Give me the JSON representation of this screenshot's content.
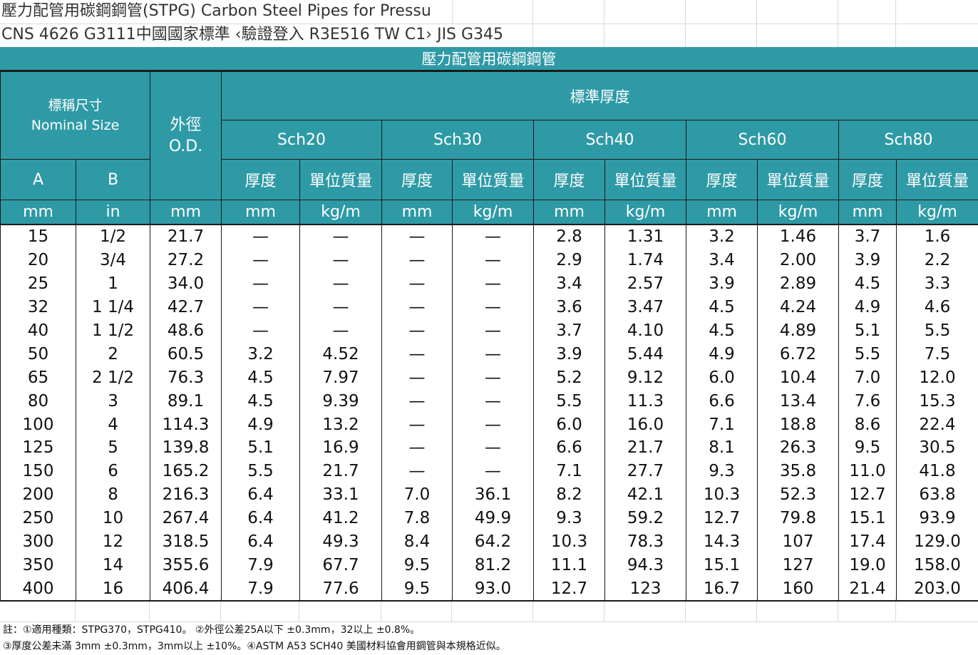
{
  "sheet": {
    "title_line1": "壓力配管用碳鋼鋼管(STPG) Carbon Steel Pipes for Pressu",
    "title_line2": "CNS 4626 G3111中國國家標準 ‹驗證登入 R3E516 TW C1› JIS G345",
    "banner": "壓力配管用碳鋼鋼管",
    "colors": {
      "header_bg": "#2e9aa6",
      "header_text": "#ffffff"
    }
  },
  "header": {
    "nominal_zh": "標稱尺寸",
    "nominal_en": "Nominal Size",
    "od_zh": "外徑",
    "od_en": "O.D.",
    "standard_thickness": "標準厚度",
    "schedules": [
      "Sch20",
      "Sch30",
      "Sch40",
      "Sch60",
      "Sch80"
    ],
    "col_a": "A",
    "col_b": "B",
    "thickness": "厚度",
    "unit_mass": "單位質量",
    "unit_mm": "mm",
    "unit_in": "in",
    "unit_kgm": "kg/m"
  },
  "rows": [
    [
      "15",
      "1/2",
      "21.7",
      "—",
      "—",
      "—",
      "—",
      "2.8",
      "1.31",
      "3.2",
      "1.46",
      "3.7",
      "1.6"
    ],
    [
      "20",
      "3/4",
      "27.2",
      "—",
      "—",
      "—",
      "—",
      "2.9",
      "1.74",
      "3.4",
      "2.00",
      "3.9",
      "2.2"
    ],
    [
      "25",
      "1",
      "34.0",
      "—",
      "—",
      "—",
      "—",
      "3.4",
      "2.57",
      "3.9",
      "2.89",
      "4.5",
      "3.3"
    ],
    [
      "32",
      "1 1/4",
      "42.7",
      "—",
      "—",
      "—",
      "—",
      "3.6",
      "3.47",
      "4.5",
      "4.24",
      "4.9",
      "4.6"
    ],
    [
      "40",
      "1 1/2",
      "48.6",
      "—",
      "—",
      "—",
      "—",
      "3.7",
      "4.10",
      "4.5",
      "4.89",
      "5.1",
      "5.5"
    ],
    [
      "50",
      "2",
      "60.5",
      "3.2",
      "4.52",
      "—",
      "—",
      "3.9",
      "5.44",
      "4.9",
      "6.72",
      "5.5",
      "7.5"
    ],
    [
      "65",
      "2 1/2",
      "76.3",
      "4.5",
      "7.97",
      "—",
      "—",
      "5.2",
      "9.12",
      "6.0",
      "10.4",
      "7.0",
      "12.0"
    ],
    [
      "80",
      "3",
      "89.1",
      "4.5",
      "9.39",
      "—",
      "—",
      "5.5",
      "11.3",
      "6.6",
      "13.4",
      "7.6",
      "15.3"
    ],
    [
      "100",
      "4",
      "114.3",
      "4.9",
      "13.2",
      "—",
      "—",
      "6.0",
      "16.0",
      "7.1",
      "18.8",
      "8.6",
      "22.4"
    ],
    [
      "125",
      "5",
      "139.8",
      "5.1",
      "16.9",
      "—",
      "—",
      "6.6",
      "21.7",
      "8.1",
      "26.3",
      "9.5",
      "30.5"
    ],
    [
      "150",
      "6",
      "165.2",
      "5.5",
      "21.7",
      "—",
      "—",
      "7.1",
      "27.7",
      "9.3",
      "35.8",
      "11.0",
      "41.8"
    ],
    [
      "200",
      "8",
      "216.3",
      "6.4",
      "33.1",
      "7.0",
      "36.1",
      "8.2",
      "42.1",
      "10.3",
      "52.3",
      "12.7",
      "63.8"
    ],
    [
      "250",
      "10",
      "267.4",
      "6.4",
      "41.2",
      "7.8",
      "49.9",
      "9.3",
      "59.2",
      "12.7",
      "79.8",
      "15.1",
      "93.9"
    ],
    [
      "300",
      "12",
      "318.5",
      "6.4",
      "49.3",
      "8.4",
      "64.2",
      "10.3",
      "78.3",
      "14.3",
      "107",
      "17.4",
      "129.0"
    ],
    [
      "350",
      "14",
      "355.6",
      "7.9",
      "67.7",
      "9.5",
      "81.2",
      "11.1",
      "94.3",
      "15.1",
      "127",
      "19.0",
      "158.0"
    ],
    [
      "400",
      "16",
      "406.4",
      "7.9",
      "77.6",
      "9.5",
      "93.0",
      "12.7",
      "123",
      "16.7",
      "160",
      "21.4",
      "203.0"
    ]
  ],
  "notes": {
    "line1": "註：①適用種類：STPG370，STPG410。 ②外徑公差25A以下 ±0.3mm，32以上 ±0.8%。",
    "line2": "③厚度公差未滿 3mm ±0.3mm，3mm以上 ±10%。④ASTM A53 SCH40 美國材料協會用鋼管與本規格近似。"
  }
}
